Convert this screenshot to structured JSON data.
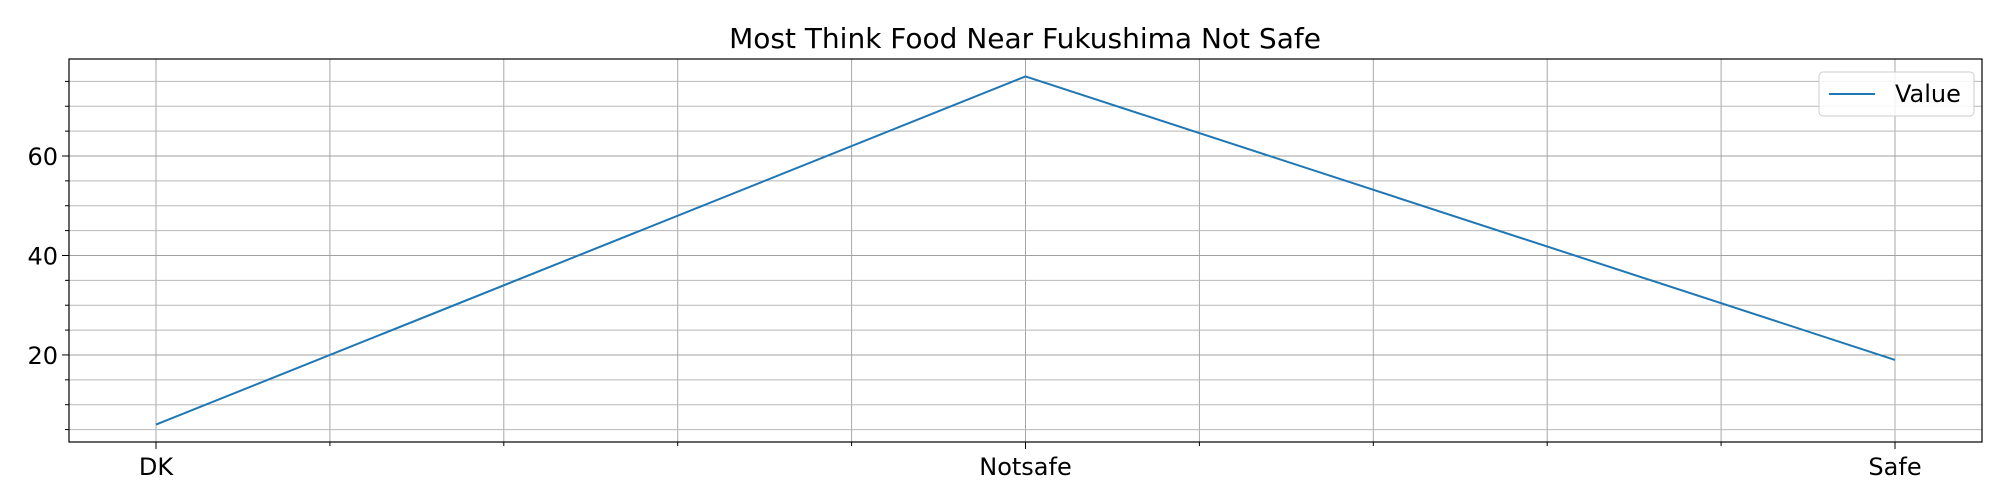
{
  "chart_data": {
    "type": "line",
    "title": "Most Think Food Near Fukushima Not Safe",
    "xlabel": "",
    "ylabel": "",
    "categories": [
      "DK",
      "Notsafe",
      "Safe"
    ],
    "series": [
      {
        "name": "Value",
        "values": [
          6,
          76,
          19
        ],
        "color": "#1f77b4"
      }
    ],
    "y_ticks": [
      20,
      40,
      60
    ],
    "ylim": [
      2.5,
      79.5
    ],
    "grid": true,
    "minor_grid": true,
    "legend": "top-right"
  }
}
